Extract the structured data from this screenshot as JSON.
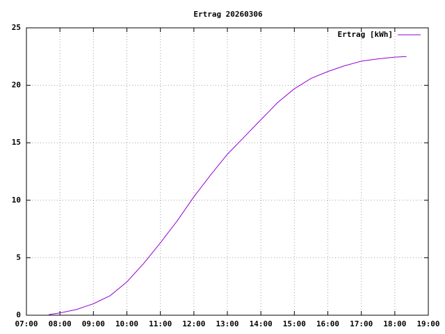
{
  "chart_data": {
    "type": "line",
    "title": "Ertrag 20260306",
    "x": [
      7.67,
      8.0,
      8.5,
      9.0,
      9.5,
      10.0,
      10.5,
      11.0,
      11.5,
      12.0,
      12.5,
      13.0,
      13.5,
      14.0,
      14.5,
      15.0,
      15.5,
      16.0,
      16.5,
      17.0,
      17.5,
      18.0,
      18.35
    ],
    "series": [
      {
        "name": "Ertrag [kWh]",
        "color": "#9400d3",
        "values": [
          0.05,
          0.2,
          0.5,
          1.0,
          1.7,
          2.9,
          4.5,
          6.3,
          8.2,
          10.3,
          12.2,
          14.0,
          15.5,
          17.0,
          18.5,
          19.7,
          20.6,
          21.2,
          21.7,
          22.1,
          22.3,
          22.45,
          22.5
        ]
      }
    ],
    "xlim": [
      7,
      19
    ],
    "xticks": [
      {
        "value": 7,
        "label": "07:00"
      },
      {
        "value": 8,
        "label": "08:00"
      },
      {
        "value": 9,
        "label": "09:00"
      },
      {
        "value": 10,
        "label": "10:00"
      },
      {
        "value": 11,
        "label": "11:00"
      },
      {
        "value": 12,
        "label": "12:00"
      },
      {
        "value": 13,
        "label": "13:00"
      },
      {
        "value": 14,
        "label": "14:00"
      },
      {
        "value": 15,
        "label": "15:00"
      },
      {
        "value": 16,
        "label": "16:00"
      },
      {
        "value": 17,
        "label": "17:00"
      },
      {
        "value": 18,
        "label": "18:00"
      },
      {
        "value": 19,
        "label": "19:00"
      }
    ],
    "ylim": [
      0,
      25
    ],
    "yticks": [
      0,
      5,
      10,
      15,
      20,
      25
    ],
    "grid": true,
    "legend": "top-right"
  }
}
